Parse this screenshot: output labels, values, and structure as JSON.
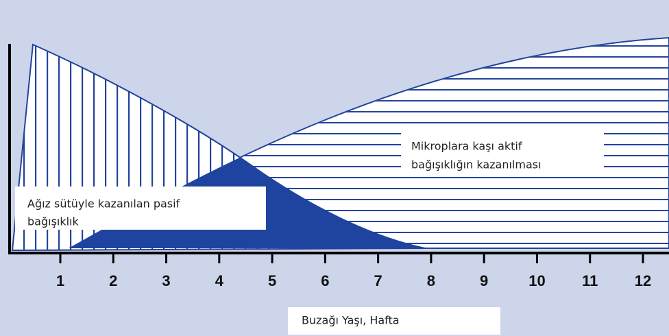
{
  "passive_label": [
    "Ağız sütüyle kazanılan pasif",
    "bağışıklık"
  ],
  "active_label": [
    "Mikroplara kaşı aktif",
    "bağışıklığın kazanılması"
  ],
  "x_axis": {
    "label": "Buzağı Yaşı, Hafta",
    "ticks": [
      1,
      2,
      3,
      4,
      5,
      6,
      7,
      8,
      9,
      10,
      11,
      12
    ]
  }
}
